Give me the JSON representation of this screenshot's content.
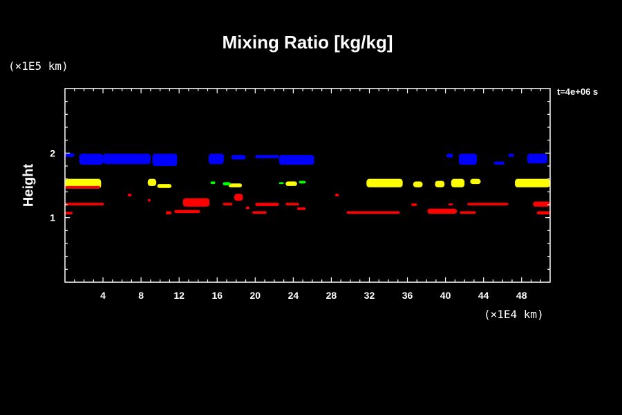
{
  "chart_data": {
    "type": "heatmap",
    "title": "Mixing Ratio [kg/kg]",
    "ylabel": "Height",
    "xlabel": "",
    "x_unit": "(×1E4 km)",
    "y_unit": "(×1E5 km)",
    "time_label": "t=4e+06 s",
    "xlim": [
      0,
      51
    ],
    "ylim": [
      0,
      3
    ],
    "x_ticks": [
      4,
      8,
      12,
      16,
      20,
      24,
      28,
      32,
      36,
      40,
      44,
      48
    ],
    "y_ticks": [
      1,
      2
    ],
    "colors": {
      "blue": "#0000ff",
      "yellow": "#ffff00",
      "green": "#00ff00",
      "red": "#ff0000",
      "background": "#000000",
      "axes": "#ffffff"
    },
    "patches": [
      {
        "color": "blue",
        "x": [
          0,
          1
        ],
        "y": [
          1.94,
          2.0
        ]
      },
      {
        "color": "blue",
        "x": [
          1.5,
          4
        ],
        "y": [
          1.82,
          1.99
        ]
      },
      {
        "color": "blue",
        "x": [
          4,
          9
        ],
        "y": [
          1.83,
          1.99
        ]
      },
      {
        "color": "blue",
        "x": [
          9.2,
          11.8
        ],
        "y": [
          1.8,
          1.99
        ]
      },
      {
        "color": "blue",
        "x": [
          15.1,
          16.7
        ],
        "y": [
          1.83,
          1.99
        ]
      },
      {
        "color": "blue",
        "x": [
          17.5,
          19
        ],
        "y": [
          1.9,
          1.97
        ]
      },
      {
        "color": "blue",
        "x": [
          20,
          22.5
        ],
        "y": [
          1.92,
          1.97
        ]
      },
      {
        "color": "blue",
        "x": [
          22.5,
          26.2
        ],
        "y": [
          1.82,
          1.97
        ]
      },
      {
        "color": "blue",
        "x": [
          40.1,
          40.8
        ],
        "y": [
          1.93,
          1.99
        ]
      },
      {
        "color": "blue",
        "x": [
          41.4,
          43.3
        ],
        "y": [
          1.82,
          1.99
        ]
      },
      {
        "color": "blue",
        "x": [
          45.1,
          46.2
        ],
        "y": [
          1.82,
          1.87
        ]
      },
      {
        "color": "blue",
        "x": [
          46.6,
          47.2
        ],
        "y": [
          1.94,
          1.99
        ]
      },
      {
        "color": "blue",
        "x": [
          48.6,
          50.7
        ],
        "y": [
          1.84,
          1.99
        ]
      },
      {
        "color": "yellow",
        "x": [
          0,
          3.8
        ],
        "y": [
          1.45,
          1.6
        ]
      },
      {
        "color": "yellow",
        "x": [
          8.7,
          9.6
        ],
        "y": [
          1.49,
          1.6
        ]
      },
      {
        "color": "yellow",
        "x": [
          9.7,
          11.2
        ],
        "y": [
          1.46,
          1.52
        ]
      },
      {
        "color": "yellow",
        "x": [
          17.2,
          18.6
        ],
        "y": [
          1.47,
          1.53
        ]
      },
      {
        "color": "yellow",
        "x": [
          23.2,
          24.4
        ],
        "y": [
          1.49,
          1.56
        ]
      },
      {
        "color": "yellow",
        "x": [
          31.7,
          35.5
        ],
        "y": [
          1.47,
          1.6
        ]
      },
      {
        "color": "yellow",
        "x": [
          36.6,
          37.6
        ],
        "y": [
          1.47,
          1.56
        ]
      },
      {
        "color": "yellow",
        "x": [
          38.9,
          39.9
        ],
        "y": [
          1.47,
          1.57
        ]
      },
      {
        "color": "yellow",
        "x": [
          40.6,
          42
        ],
        "y": [
          1.47,
          1.6
        ]
      },
      {
        "color": "yellow",
        "x": [
          42.6,
          43.7
        ],
        "y": [
          1.52,
          1.6
        ]
      },
      {
        "color": "yellow",
        "x": [
          47.3,
          51
        ],
        "y": [
          1.47,
          1.6
        ]
      },
      {
        "color": "green",
        "x": [
          15.3,
          15.8
        ],
        "y": [
          1.52,
          1.56
        ]
      },
      {
        "color": "green",
        "x": [
          16.6,
          17.4
        ],
        "y": [
          1.5,
          1.55
        ]
      },
      {
        "color": "green",
        "x": [
          22.5,
          23
        ],
        "y": [
          1.52,
          1.55
        ]
      },
      {
        "color": "green",
        "x": [
          24.6,
          25.3
        ],
        "y": [
          1.53,
          1.57
        ]
      },
      {
        "color": "red",
        "x": [
          0,
          3.7
        ],
        "y": [
          1.45,
          1.49
        ]
      },
      {
        "color": "red",
        "x": [
          0,
          4.1
        ],
        "y": [
          1.19,
          1.23
        ]
      },
      {
        "color": "red",
        "x": [
          0,
          0.8
        ],
        "y": [
          1.05,
          1.09
        ]
      },
      {
        "color": "red",
        "x": [
          6.6,
          7
        ],
        "y": [
          1.33,
          1.37
        ]
      },
      {
        "color": "red",
        "x": [
          8.7,
          9
        ],
        "y": [
          1.25,
          1.29
        ]
      },
      {
        "color": "red",
        "x": [
          10.6,
          11.2
        ],
        "y": [
          1.05,
          1.1
        ]
      },
      {
        "color": "red",
        "x": [
          11.5,
          14.2
        ],
        "y": [
          1.07,
          1.12
        ]
      },
      {
        "color": "red",
        "x": [
          12.4,
          15.2
        ],
        "y": [
          1.17,
          1.3
        ]
      },
      {
        "color": "red",
        "x": [
          16.6,
          17.6
        ],
        "y": [
          1.19,
          1.23
        ]
      },
      {
        "color": "red",
        "x": [
          17.8,
          18.7
        ],
        "y": [
          1.26,
          1.37
        ]
      },
      {
        "color": "red",
        "x": [
          19,
          19.4
        ],
        "y": [
          1.13,
          1.17
        ]
      },
      {
        "color": "red",
        "x": [
          19.7,
          21.2
        ],
        "y": [
          1.06,
          1.1
        ]
      },
      {
        "color": "red",
        "x": [
          20,
          22.5
        ],
        "y": [
          1.18,
          1.23
        ]
      },
      {
        "color": "red",
        "x": [
          23.2,
          24.6
        ],
        "y": [
          1.19,
          1.23
        ]
      },
      {
        "color": "red",
        "x": [
          24.4,
          25.3
        ],
        "y": [
          1.12,
          1.16
        ]
      },
      {
        "color": "red",
        "x": [
          28.4,
          28.8
        ],
        "y": [
          1.33,
          1.37
        ]
      },
      {
        "color": "red",
        "x": [
          29.6,
          35.2
        ],
        "y": [
          1.06,
          1.1
        ]
      },
      {
        "color": "red",
        "x": [
          36.4,
          37
        ],
        "y": [
          1.18,
          1.22
        ]
      },
      {
        "color": "red",
        "x": [
          38.1,
          41.2
        ],
        "y": [
          1.06,
          1.14
        ]
      },
      {
        "color": "red",
        "x": [
          41.5,
          43.2
        ],
        "y": [
          1.06,
          1.1
        ]
      },
      {
        "color": "red",
        "x": [
          40.3,
          40.8
        ],
        "y": [
          1.19,
          1.22
        ]
      },
      {
        "color": "red",
        "x": [
          42.3,
          46.6
        ],
        "y": [
          1.19,
          1.23
        ]
      },
      {
        "color": "red",
        "x": [
          49.2,
          51
        ],
        "y": [
          1.17,
          1.25
        ]
      },
      {
        "color": "red",
        "x": [
          49.6,
          51
        ],
        "y": [
          1.05,
          1.1
        ]
      }
    ]
  }
}
